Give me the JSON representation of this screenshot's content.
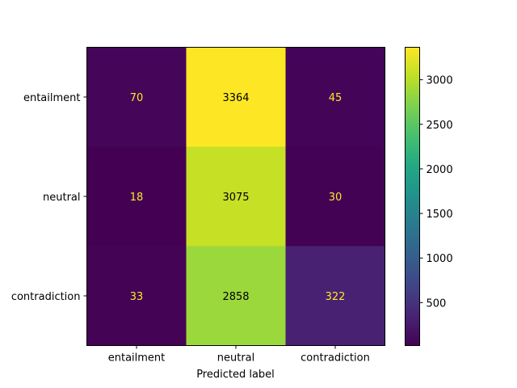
{
  "chart_data": {
    "type": "heatmap",
    "title": "",
    "xlabel": "Predicted label",
    "ylabel": "",
    "x_categories": [
      "entailment",
      "neutral",
      "contradiction"
    ],
    "y_categories": [
      "entailment",
      "neutral",
      "contradiction"
    ],
    "values": [
      [
        70,
        3364,
        45
      ],
      [
        18,
        3075,
        30
      ],
      [
        33,
        2858,
        322
      ]
    ],
    "colormap": "viridis",
    "color_range": [
      18,
      3364
    ],
    "colorbar_ticks": [
      500,
      1000,
      1500,
      2000,
      2500,
      3000
    ],
    "colorbar_tick_labels": [
      "500",
      "1000",
      "1500",
      "2000",
      "2500",
      "3000"
    ],
    "text_colors": {
      "light": "#fde725",
      "dark": "#000000"
    }
  }
}
